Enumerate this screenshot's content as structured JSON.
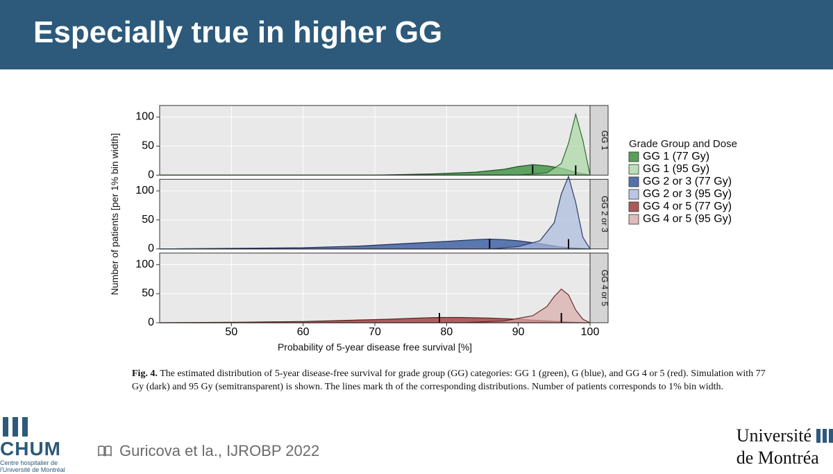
{
  "header": {
    "title": "Especially true in higher GG"
  },
  "citation": "Guricova et la., IJROBP 2022",
  "caption": {
    "lead": "Fig. 4.",
    "body": "The estimated distribution of 5-year disease-free survival for grade group (GG) categories: GG 1 (green), G (blue), and GG 4 or 5 (red). Simulation with 77 Gy (dark) and 95 Gy (semitransparent) is shown. The lines mark th of the corresponding distributions. Number of patients corresponds to 1% bin width."
  },
  "chart": {
    "type": "ridgeline",
    "xlabel": "Probability of 5-year disease free survival [%]",
    "ylabel": "Number of patients [per 1% bin width]",
    "xlim": [
      40,
      100
    ],
    "xticks": [
      50,
      60,
      70,
      80,
      90,
      100
    ],
    "ylim": [
      0,
      120
    ],
    "yticks": [
      0,
      50,
      100
    ],
    "legend_title": "Grade Group and Dose",
    "background_color": "#e9e9e9",
    "grid_color": "#ffffff",
    "axis_color": "#333333",
    "text_color": "#111111",
    "stroke_width": 1.2,
    "panels": [
      {
        "label": "GG 1",
        "series": [
          {
            "name": "GG 1 (77 Gy)",
            "fill": "#4f9a52",
            "opacity": 0.9,
            "stroke": "#1f4d22",
            "median_x": 92,
            "points": [
              [
                40,
                0
              ],
              [
                70,
                0
              ],
              [
                78,
                2
              ],
              [
                84,
                5
              ],
              [
                88,
                10
              ],
              [
                90,
                15
              ],
              [
                92,
                18
              ],
              [
                94,
                16
              ],
              [
                96,
                12
              ],
              [
                98,
                5
              ],
              [
                100,
                0
              ]
            ]
          },
          {
            "name": "GG 1 (95 Gy)",
            "fill": "#a9d7a4",
            "opacity": 0.7,
            "stroke": "#2f6a33",
            "median_x": 98,
            "points": [
              [
                40,
                0
              ],
              [
                90,
                0
              ],
              [
                94,
                4
              ],
              [
                96,
                20
              ],
              [
                97,
                55
              ],
              [
                98,
                105
              ],
              [
                99,
                60
              ],
              [
                100,
                0
              ]
            ]
          }
        ]
      },
      {
        "label": "GG 2 or 3",
        "series": [
          {
            "name": "GG 2 or 3 (77 Gy)",
            "fill": "#4a6aa8",
            "opacity": 0.9,
            "stroke": "#1d2f55",
            "median_x": 86,
            "points": [
              [
                40,
                0
              ],
              [
                60,
                2
              ],
              [
                68,
                5
              ],
              [
                74,
                9
              ],
              [
                80,
                13
              ],
              [
                84,
                16
              ],
              [
                86,
                17
              ],
              [
                88,
                16
              ],
              [
                90,
                14
              ],
              [
                93,
                9
              ],
              [
                96,
                3
              ],
              [
                100,
                0
              ]
            ]
          },
          {
            "name": "GG 2 or 3 (95 Gy)",
            "fill": "#a9b9dd",
            "opacity": 0.7,
            "stroke": "#2a3c6a",
            "median_x": 97,
            "points": [
              [
                40,
                0
              ],
              [
                86,
                0
              ],
              [
                90,
                4
              ],
              [
                93,
                14
              ],
              [
                95,
                45
              ],
              [
                96,
                95
              ],
              [
                97,
                125
              ],
              [
                98,
                80
              ],
              [
                99,
                20
              ],
              [
                100,
                0
              ]
            ]
          }
        ]
      },
      {
        "label": "GG 4 or 5",
        "series": [
          {
            "name": "GG 4 or 5 (77 Gy)",
            "fill": "#a85050",
            "opacity": 0.9,
            "stroke": "#5a1f1f",
            "median_x": 79,
            "points": [
              [
                40,
                0
              ],
              [
                52,
                1
              ],
              [
                60,
                2
              ],
              [
                66,
                4
              ],
              [
                72,
                6
              ],
              [
                76,
                8
              ],
              [
                79,
                9
              ],
              [
                82,
                9
              ],
              [
                86,
                8
              ],
              [
                90,
                6
              ],
              [
                94,
                3
              ],
              [
                99,
                0
              ],
              [
                100,
                0
              ]
            ]
          },
          {
            "name": "GG 4 or 5 (95 Gy)",
            "fill": "#d9a9a9",
            "opacity": 0.7,
            "stroke": "#6a2a2a",
            "median_x": 96,
            "points": [
              [
                40,
                0
              ],
              [
                82,
                0
              ],
              [
                88,
                3
              ],
              [
                92,
                12
              ],
              [
                94,
                28
              ],
              [
                95,
                45
              ],
              [
                96,
                58
              ],
              [
                97,
                48
              ],
              [
                98,
                22
              ],
              [
                99,
                6
              ],
              [
                100,
                0
              ]
            ]
          }
        ]
      }
    ],
    "legend_items": [
      {
        "label": "GG 1 (77 Gy)",
        "fill": "#4f9a52",
        "opacity": 0.95
      },
      {
        "label": "GG 1 (95 Gy)",
        "fill": "#a9d7a4",
        "opacity": 0.8
      },
      {
        "label": "GG 2 or 3 (77 Gy)",
        "fill": "#4a6aa8",
        "opacity": 0.95
      },
      {
        "label": "GG 2 or 3 (95 Gy)",
        "fill": "#a9b9dd",
        "opacity": 0.8
      },
      {
        "label": "GG 4 or 5 (77 Gy)",
        "fill": "#a85050",
        "opacity": 0.95
      },
      {
        "label": "GG 4 or 5 (95 Gy)",
        "fill": "#d9a9a9",
        "opacity": 0.8
      }
    ]
  },
  "logos": {
    "chum": {
      "name": "CHUM",
      "sub": "Centre hospitalier\nde l'Université de Montréal"
    },
    "udem": {
      "l1": "Université",
      "l2": "de Montréa"
    }
  }
}
